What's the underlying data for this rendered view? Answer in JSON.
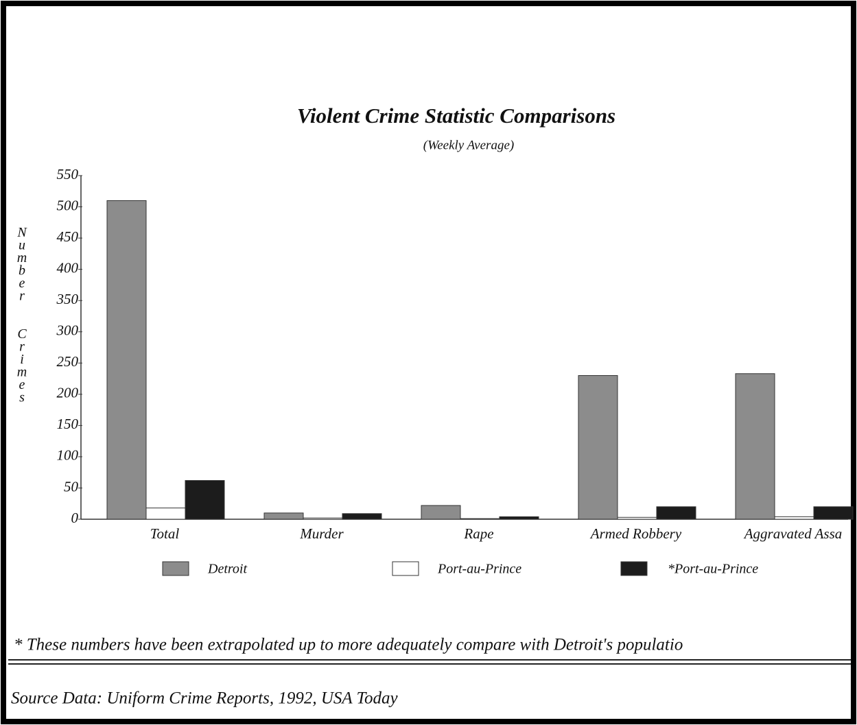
{
  "chart_data": {
    "type": "bar",
    "title": "Violent Crime Statistic Comparisons",
    "subtitle": "(Weekly Average)",
    "y_label": "Number Crimes",
    "categories": [
      "Total",
      "Murder",
      "Rape",
      "Armed Robbery",
      "Aggravated Assa"
    ],
    "series": [
      {
        "name": "Detroit",
        "color": "#8c8c8c",
        "values": [
          510,
          10,
          22,
          230,
          233
        ]
      },
      {
        "name": "Port-au-Prince",
        "color": "#ffffff",
        "values": [
          18,
          2,
          1,
          3,
          4
        ]
      },
      {
        "name": "*Port-au-Prince",
        "color": "#1c1c1c",
        "values": [
          62,
          9,
          4,
          20,
          20
        ]
      }
    ],
    "ylim": [
      0,
      550
    ],
    "yticks": [
      0,
      50,
      100,
      150,
      200,
      250,
      300,
      350,
      400,
      450,
      500,
      550
    ],
    "grid": false,
    "footnote": "* These numbers have been extrapolated up to more adequately compare with Detroit's populatio",
    "source": "Source Data:  Uniform Crime Reports, 1992, USA Today"
  }
}
